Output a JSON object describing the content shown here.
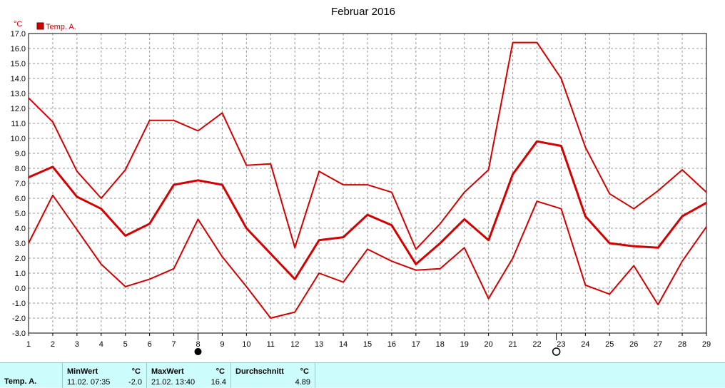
{
  "chart_data": {
    "type": "line",
    "title": "Februar 2016",
    "ylabel": "°C",
    "ylim": [
      -3.0,
      17.0
    ],
    "xlim": [
      1,
      29
    ],
    "grid": true,
    "legend_position": "top-left",
    "yticks": [
      "17.0",
      "16.0",
      "15.0",
      "14.0",
      "13.0",
      "12.0",
      "11.0",
      "10.0",
      "9.0",
      "8.0",
      "7.0",
      "6.0",
      "5.0",
      "4.0",
      "3.0",
      "2.0",
      "1.0",
      "0.0",
      "-1.0",
      "-2.0",
      "-3.0"
    ],
    "xticks": [
      "1",
      "2",
      "3",
      "4",
      "5",
      "6",
      "7",
      "8",
      "9",
      "10",
      "11",
      "12",
      "13",
      "14",
      "15",
      "16",
      "17",
      "18",
      "19",
      "20",
      "21",
      "22",
      "23",
      "24",
      "25",
      "26",
      "27",
      "28",
      "29"
    ],
    "x": [
      1,
      2,
      3,
      4,
      5,
      6,
      7,
      8,
      9,
      10,
      11,
      12,
      13,
      14,
      15,
      16,
      17,
      18,
      19,
      20,
      21,
      22,
      23,
      24,
      25,
      26,
      27,
      28,
      29
    ],
    "legend": [
      {
        "label": "Temp. A.",
        "color": "#d40000"
      }
    ],
    "series": [
      {
        "role": "max",
        "values": [
          12.7,
          11.1,
          7.8,
          6.0,
          7.9,
          11.2,
          11.2,
          10.5,
          11.7,
          8.2,
          8.3,
          2.7,
          7.8,
          6.9,
          6.9,
          6.4,
          2.6,
          4.3,
          6.4,
          7.9,
          16.4,
          16.4,
          14.0,
          9.4,
          6.3,
          5.3,
          6.5,
          7.9,
          6.4
        ]
      },
      {
        "role": "avg",
        "values": [
          7.4,
          8.1,
          6.1,
          5.3,
          3.5,
          4.3,
          6.9,
          7.2,
          6.9,
          4.0,
          2.3,
          0.6,
          3.2,
          3.4,
          4.9,
          4.2,
          1.6,
          3.0,
          4.6,
          3.2,
          7.6,
          9.8,
          9.5,
          4.8,
          3.0,
          2.8,
          2.7,
          4.8,
          5.7
        ]
      },
      {
        "role": "min",
        "values": [
          3.0,
          6.2,
          3.9,
          1.6,
          0.1,
          0.6,
          1.3,
          4.6,
          2.1,
          0.1,
          -2.0,
          -1.6,
          1.0,
          0.4,
          2.6,
          1.8,
          1.2,
          1.3,
          2.7,
          -0.7,
          2.0,
          5.8,
          5.3,
          0.2,
          -0.4,
          1.5,
          -1.1,
          1.8,
          4.1
        ]
      }
    ],
    "annotations": [
      {
        "type": "full-moon",
        "x": 8.0
      },
      {
        "type": "new-moon",
        "x": 22.8
      }
    ],
    "series_color": "#d40000"
  },
  "stats": {
    "label": "Temp. A.",
    "min": {
      "header": "MinWert",
      "unit": "°C",
      "datetime": "11.02.  07:35",
      "value": "-2.0"
    },
    "max": {
      "header": "MaxWert",
      "unit": "°C",
      "datetime": "21.02.  13:40",
      "value": "16.4"
    },
    "avg": {
      "header": "Durchschnitt",
      "unit": "°C",
      "value": "4.89"
    }
  }
}
